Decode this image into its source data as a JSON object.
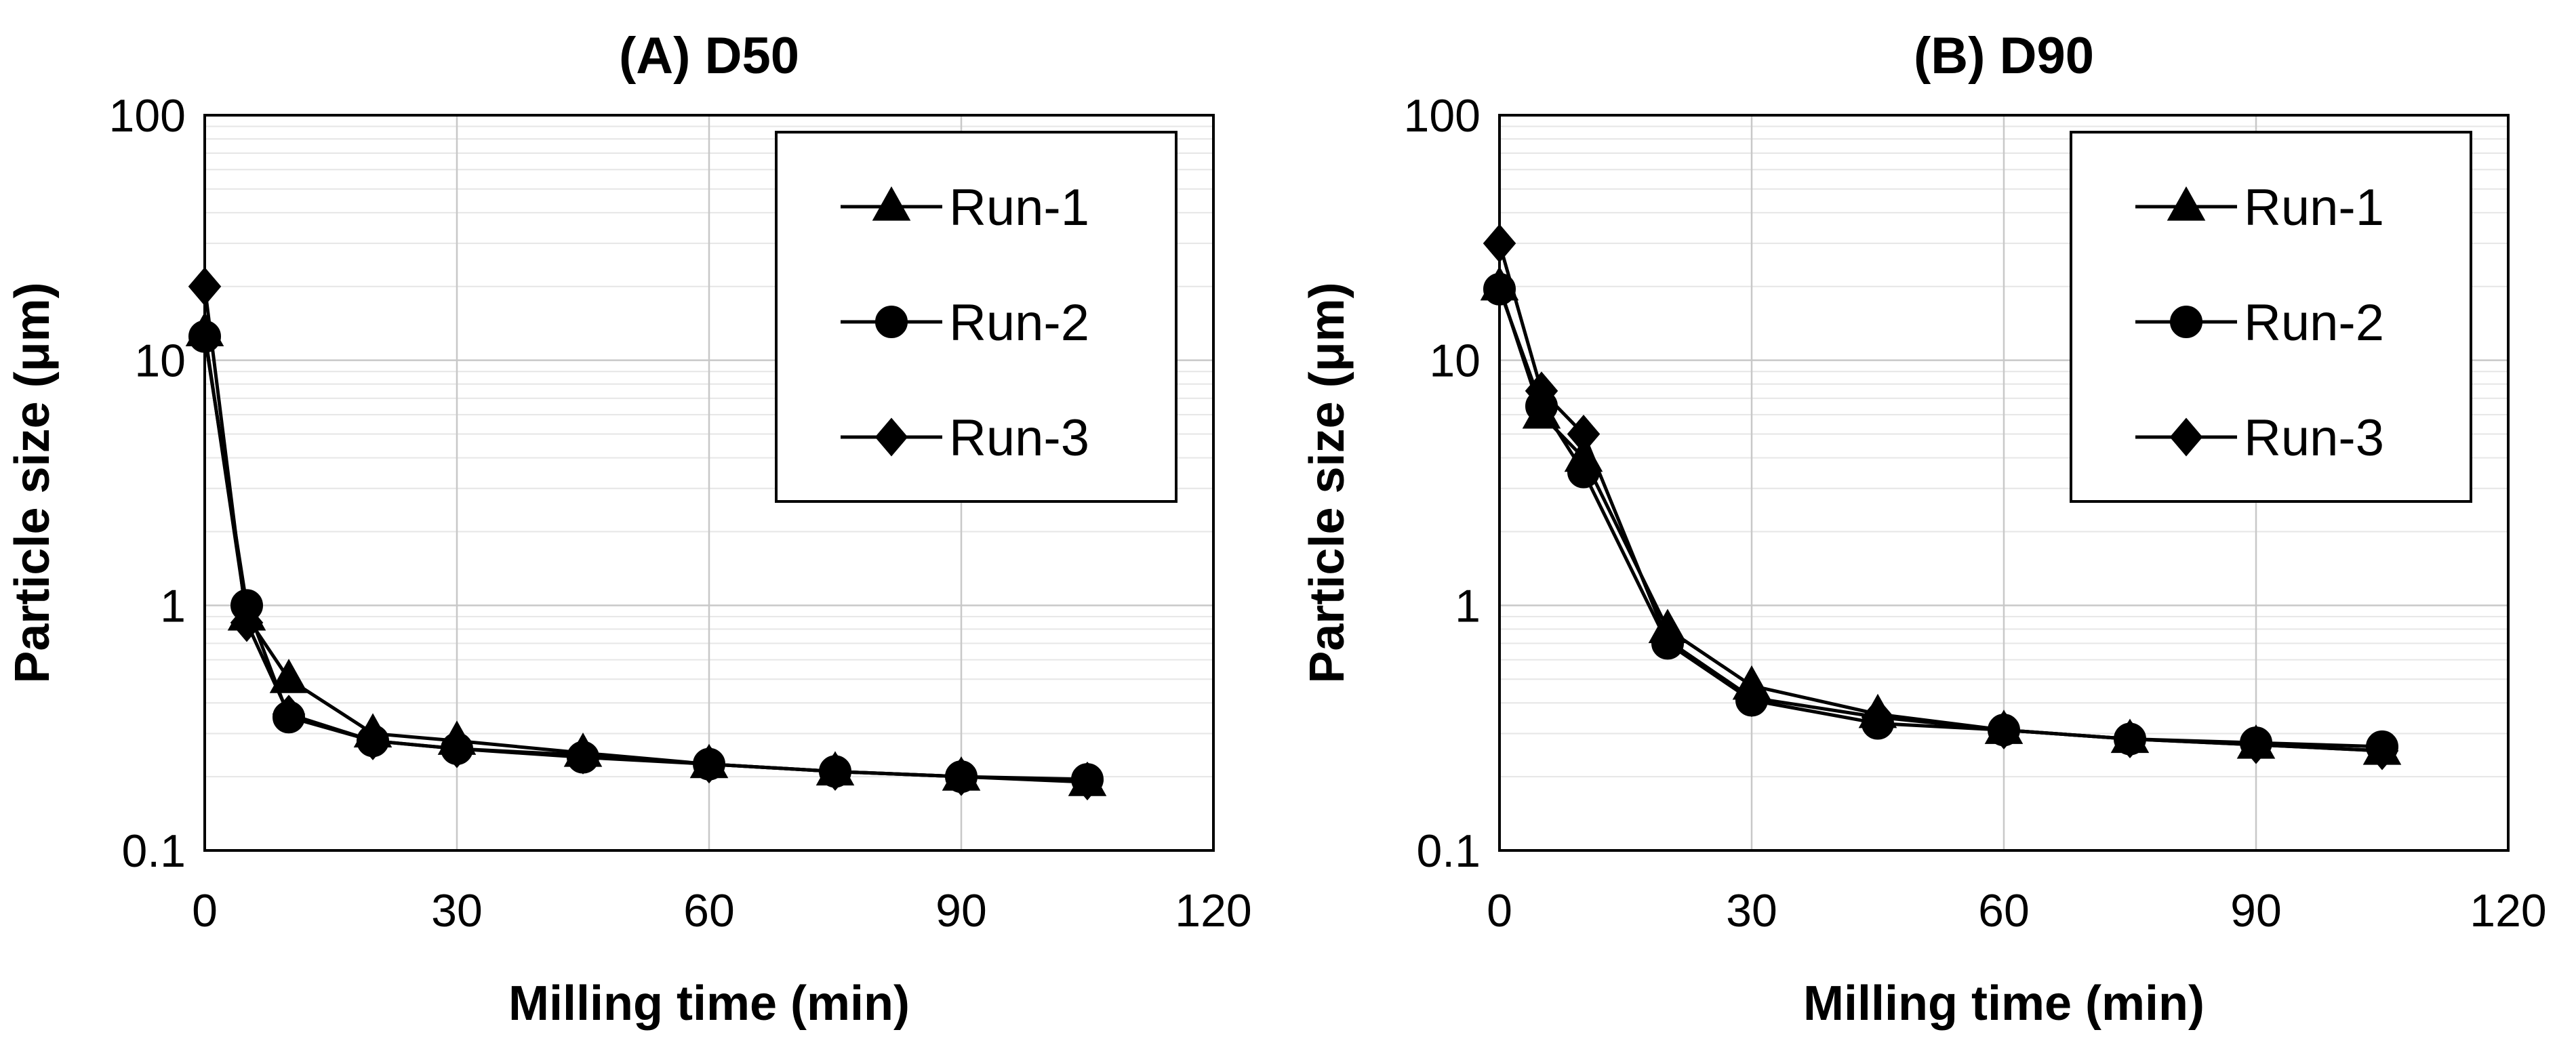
{
  "chart_data": [
    {
      "type": "line",
      "title": "(A) D50",
      "xlabel": "Milling time (min)",
      "ylabel": "Particle size (μm)",
      "xscale": "linear",
      "yscale": "log",
      "xlim": [
        0,
        120
      ],
      "ylim": [
        0.1,
        100
      ],
      "xticks": [
        "0",
        "30",
        "60",
        "90",
        "120"
      ],
      "yticks": [
        "0.1",
        "1",
        "10",
        "100"
      ],
      "grid": true,
      "legend_position": "top-right",
      "x": [
        0,
        5,
        10,
        20,
        30,
        45,
        60,
        75,
        90,
        105
      ],
      "series": [
        {
          "name": "Run-1",
          "marker": "triangle",
          "values": [
            13,
            0.9,
            0.5,
            0.3,
            0.28,
            0.25,
            0.225,
            0.21,
            0.2,
            0.19
          ]
        },
        {
          "name": "Run-2",
          "marker": "circle",
          "values": [
            12.5,
            1.0,
            0.35,
            0.28,
            0.26,
            0.24,
            0.225,
            0.21,
            0.2,
            0.195
          ]
        },
        {
          "name": "Run-3",
          "marker": "diamond",
          "values": [
            20,
            0.85,
            0.36,
            0.28,
            0.26,
            0.245,
            0.225,
            0.21,
            0.2,
            0.192
          ]
        }
      ]
    },
    {
      "type": "line",
      "title": "(B) D90",
      "xlabel": "Milling time (min)",
      "ylabel": "Particle size (μm)",
      "xscale": "linear",
      "yscale": "log",
      "xlim": [
        0,
        120
      ],
      "ylim": [
        0.1,
        100
      ],
      "xticks": [
        "0",
        "30",
        "60",
        "90",
        "120"
      ],
      "yticks": [
        "0.1",
        "1",
        "10",
        "100"
      ],
      "grid": true,
      "legend_position": "top-right",
      "x": [
        0,
        5,
        10,
        20,
        30,
        45,
        60,
        75,
        90,
        105
      ],
      "series": [
        {
          "name": "Run-1",
          "marker": "triangle",
          "values": [
            20,
            6,
            4.0,
            0.8,
            0.47,
            0.36,
            0.31,
            0.285,
            0.27,
            0.255
          ]
        },
        {
          "name": "Run-2",
          "marker": "circle",
          "values": [
            19.5,
            6.5,
            3.5,
            0.7,
            0.41,
            0.33,
            0.31,
            0.285,
            0.275,
            0.265
          ]
        },
        {
          "name": "Run-3",
          "marker": "diamond",
          "values": [
            30,
            7.5,
            5.0,
            0.72,
            0.42,
            0.35,
            0.31,
            0.285,
            0.27,
            0.255
          ]
        }
      ]
    }
  ]
}
